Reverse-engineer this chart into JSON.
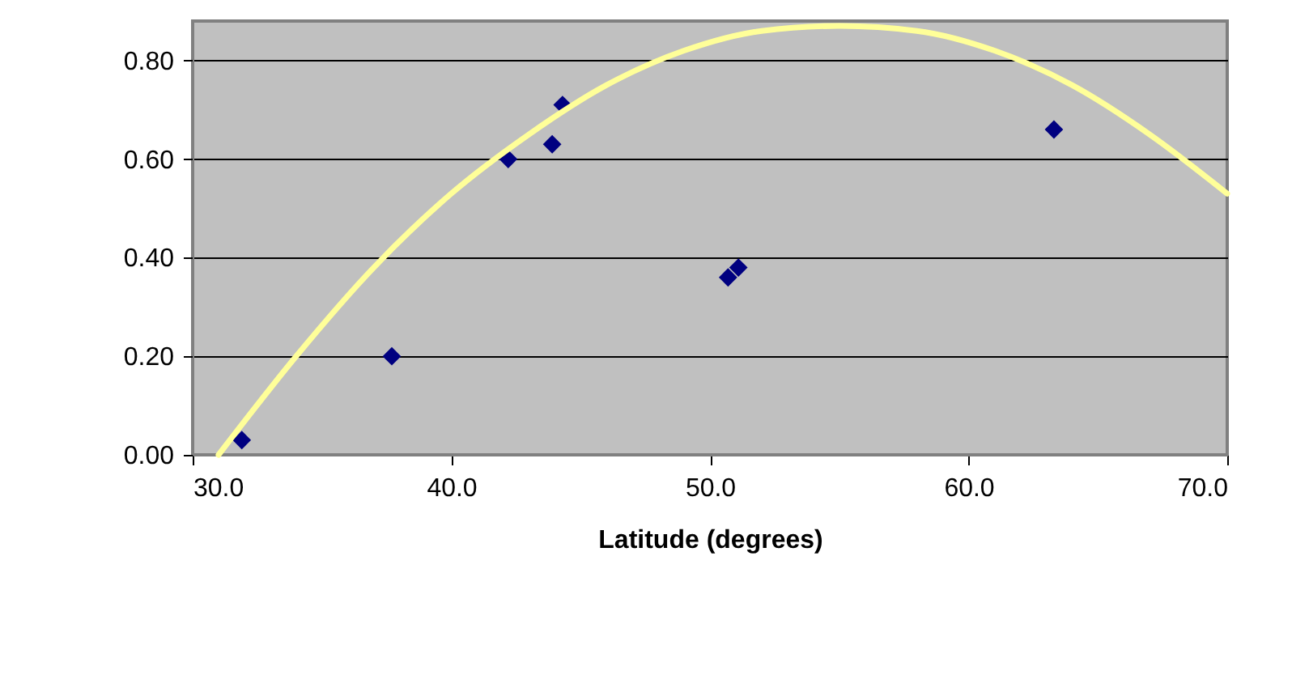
{
  "chart_data": {
    "type": "scatter",
    "xlabel": "Latitude (degrees)",
    "grid": "y",
    "xlim": [
      30,
      70
    ],
    "xticks": [
      {
        "value": 30,
        "label": "30.0"
      },
      {
        "value": 40,
        "label": "40.0"
      },
      {
        "value": 50,
        "label": "50.0"
      },
      {
        "value": 60,
        "label": "60.0"
      },
      {
        "value": 70,
        "label": "70.0"
      }
    ],
    "ylim": [
      0,
      0.88
    ],
    "yticks": [
      {
        "value": 0,
        "label": "0.00"
      },
      {
        "value": 0.2,
        "label": "0.20"
      },
      {
        "value": 0.4,
        "label": "0.40"
      },
      {
        "value": 0.6,
        "label": "0.60"
      },
      {
        "value": 0.8,
        "label": "0.80"
      }
    ],
    "series": [
      {
        "marker": "diamond",
        "color": "#000080",
        "x": [
          31.9,
          37.7,
          42.2,
          43.9,
          44.3,
          50.7,
          51.1,
          63.3
        ],
        "values": [
          0.03,
          0.2,
          0.6,
          0.63,
          0.71,
          0.36,
          0.38,
          0.66
        ]
      },
      {
        "type": "line",
        "marker": "none",
        "color": "#ffff99",
        "x": [
          31,
          34,
          37,
          40,
          43,
          46,
          49,
          52,
          55,
          58,
          61,
          64,
          67,
          70
        ],
        "values": [
          0,
          0.2,
          0.38,
          0.53,
          0.65,
          0.75,
          0.82,
          0.86,
          0.87,
          0.86,
          0.82,
          0.75,
          0.65,
          0.53
        ]
      }
    ]
  }
}
